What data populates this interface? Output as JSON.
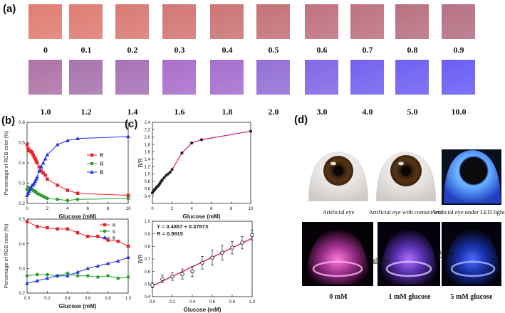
{
  "panels": {
    "a": "(a)",
    "b": "(b)",
    "c": "(c)",
    "d": "(d)"
  },
  "swatches": {
    "row1": [
      {
        "label": "0",
        "color": "#e07e72"
      },
      {
        "label": "0.1",
        "color": "#de7d73"
      },
      {
        "label": "0.2",
        "color": "#d97a74"
      },
      {
        "label": "0.3",
        "color": "#d27775"
      },
      {
        "label": "0.4",
        "color": "#cb7576"
      },
      {
        "label": "0.5",
        "color": "#c47279"
      },
      {
        "label": "0.6",
        "color": "#c0727f"
      },
      {
        "label": "0.7",
        "color": "#bd7280"
      },
      {
        "label": "0.8",
        "color": "#b97181"
      },
      {
        "label": "0.9",
        "color": "#b57183"
      }
    ],
    "row2": [
      {
        "label": "1.0",
        "color": "#ae73a6"
      },
      {
        "label": "1.2",
        "color": "#a874ae"
      },
      {
        "label": "1.4",
        "color": "#a872b6"
      },
      {
        "label": "1.6",
        "color": "#aa6fcb"
      },
      {
        "label": "1.8",
        "color": "#a66fce"
      },
      {
        "label": "2.0",
        "color": "#9470d6"
      },
      {
        "label": "3.0",
        "color": "#8268e6"
      },
      {
        "label": "4.0",
        "color": "#7462ee"
      },
      {
        "label": "5.0",
        "color": "#7061f2"
      },
      {
        "label": "10.0",
        "color": "#6a5ef5"
      }
    ]
  },
  "chart_data": [
    {
      "id": "b_top",
      "type": "line",
      "xlabel": "Glucose (mM)",
      "ylabel": "Percentage of RGB color (%)",
      "xlim": [
        0,
        10
      ],
      "ylim": [
        0.2,
        0.6
      ],
      "xticks": [
        "0",
        "2",
        "4",
        "6",
        "8",
        "10"
      ],
      "yticks": [
        "0.2",
        "0.3",
        "0.4",
        "0.5",
        "0.6"
      ],
      "legend": [
        "R",
        "G",
        "B"
      ],
      "colors": [
        "#e8242b",
        "#2e9e2e",
        "#2233dd"
      ],
      "series": [
        {
          "name": "R",
          "x": [
            0,
            0.1,
            0.2,
            0.3,
            0.4,
            0.5,
            0.6,
            0.7,
            0.8,
            0.9,
            1.0,
            1.2,
            1.4,
            1.6,
            1.8,
            2,
            3,
            4,
            5,
            10
          ],
          "y": [
            0.49,
            0.47,
            0.46,
            0.46,
            0.455,
            0.45,
            0.44,
            0.43,
            0.42,
            0.41,
            0.4,
            0.38,
            0.36,
            0.35,
            0.34,
            0.32,
            0.29,
            0.265,
            0.25,
            0.24
          ]
        },
        {
          "name": "G",
          "x": [
            0,
            0.1,
            0.2,
            0.3,
            0.4,
            0.5,
            0.6,
            0.7,
            0.8,
            0.9,
            1.0,
            1.2,
            1.4,
            1.6,
            1.8,
            2,
            3,
            4,
            5,
            10
          ],
          "y": [
            0.27,
            0.28,
            0.275,
            0.275,
            0.27,
            0.27,
            0.265,
            0.26,
            0.26,
            0.255,
            0.25,
            0.245,
            0.24,
            0.235,
            0.23,
            0.225,
            0.22,
            0.215,
            0.22,
            0.225
          ]
        },
        {
          "name": "B",
          "x": [
            0,
            0.1,
            0.2,
            0.3,
            0.4,
            0.5,
            0.6,
            0.7,
            0.8,
            0.9,
            1.0,
            1.2,
            1.4,
            1.6,
            1.8,
            2,
            3,
            4,
            5,
            10
          ],
          "y": [
            0.24,
            0.25,
            0.26,
            0.27,
            0.28,
            0.29,
            0.29,
            0.3,
            0.31,
            0.32,
            0.33,
            0.36,
            0.38,
            0.4,
            0.42,
            0.44,
            0.49,
            0.51,
            0.52,
            0.53
          ]
        }
      ]
    },
    {
      "id": "c_top",
      "type": "line",
      "xlabel": "Glucose (mM)",
      "ylabel": "B/R",
      "xlim": [
        0,
        10
      ],
      "ylim": [
        0.2,
        2.4
      ],
      "xticks": [
        "0",
        "2",
        "4",
        "6",
        "8",
        "10"
      ],
      "yticks": [
        "0.4",
        "0.6",
        "0.8",
        "1.0",
        "1.2",
        "1.4",
        "1.6",
        "1.8",
        "2.0",
        "2.2",
        "2.4"
      ],
      "color": "#d6157f",
      "x": [
        0,
        0.1,
        0.2,
        0.3,
        0.4,
        0.5,
        0.6,
        0.7,
        0.8,
        0.9,
        1.0,
        1.2,
        1.4,
        1.6,
        1.8,
        2,
        3,
        4,
        5,
        10
      ],
      "y": [
        0.49,
        0.53,
        0.56,
        0.6,
        0.63,
        0.66,
        0.68,
        0.72,
        0.76,
        0.8,
        0.84,
        0.9,
        0.96,
        1.0,
        1.05,
        1.12,
        1.57,
        1.84,
        1.93,
        2.16
      ]
    },
    {
      "id": "b_bottom",
      "type": "line",
      "xlabel": "Glucose (mM)",
      "ylabel": "Percentage of RGB color (%)",
      "xlim": [
        0,
        1.0
      ],
      "ylim": [
        0.2,
        0.5
      ],
      "xticks": [
        "0.0",
        "0.2",
        "0.4",
        "0.6",
        "0.8",
        "1.0"
      ],
      "yticks": [
        "0.2",
        "0.3",
        "0.4",
        "0.5"
      ],
      "legend": [
        "R",
        "G",
        "B"
      ],
      "colors": [
        "#e8242b",
        "#2e9e2e",
        "#2233dd"
      ],
      "series": [
        {
          "name": "R",
          "x": [
            0,
            0.1,
            0.2,
            0.3,
            0.4,
            0.5,
            0.6,
            0.7,
            0.8,
            0.9,
            1.0
          ],
          "y": [
            0.49,
            0.47,
            0.465,
            0.46,
            0.46,
            0.445,
            0.43,
            0.43,
            0.415,
            0.41,
            0.39
          ]
        },
        {
          "name": "G",
          "x": [
            0,
            0.1,
            0.2,
            0.3,
            0.4,
            0.5,
            0.6,
            0.7,
            0.8,
            0.9,
            1.0
          ],
          "y": [
            0.27,
            0.275,
            0.275,
            0.27,
            0.28,
            0.27,
            0.27,
            0.265,
            0.27,
            0.26,
            0.265
          ]
        },
        {
          "name": "B",
          "x": [
            0,
            0.1,
            0.2,
            0.3,
            0.4,
            0.5,
            0.6,
            0.7,
            0.8,
            0.9,
            1.0
          ],
          "y": [
            0.24,
            0.25,
            0.26,
            0.27,
            0.27,
            0.285,
            0.3,
            0.31,
            0.32,
            0.33,
            0.345
          ]
        }
      ]
    },
    {
      "id": "c_bottom",
      "type": "scatter",
      "xlabel": "Glucose (mM)",
      "ylabel": "B/R",
      "xlim": [
        0,
        1.0
      ],
      "ylim": [
        0.4,
        1.0
      ],
      "xticks": [
        "0.0",
        "0.2",
        "0.4",
        "0.6",
        "0.8",
        "1.0"
      ],
      "yticks": [
        "0.4",
        "0.5",
        "0.6",
        "0.7",
        "0.8",
        "0.9",
        "1.0"
      ],
      "annotation_lines": [
        "Y = 0.4857 + 0.3787X",
        "R = 0.9915"
      ],
      "fit": {
        "intercept": 0.4857,
        "slope": 0.3787
      },
      "color": "#d6157f",
      "x": [
        0,
        0.1,
        0.2,
        0.3,
        0.4,
        0.5,
        0.6,
        0.7,
        0.8,
        0.9,
        1.0
      ],
      "y": [
        0.49,
        0.54,
        0.56,
        0.58,
        0.6,
        0.67,
        0.71,
        0.75,
        0.79,
        0.83,
        0.89
      ],
      "err": [
        0.02,
        0.03,
        0.03,
        0.04,
        0.04,
        0.05,
        0.06,
        0.06,
        0.05,
        0.05,
        0.04
      ]
    }
  ],
  "eyes": {
    "top": [
      {
        "caption": "Artificial eye"
      },
      {
        "caption": "Artificial eye with contact lens"
      },
      {
        "caption": "Artificial eye under LED light"
      }
    ],
    "bottom": [
      {
        "caption": "0 mM"
      },
      {
        "caption": "1 mM glucose"
      },
      {
        "caption": "5 mM glucose"
      }
    ],
    "arrows": [
      "glucose",
      "glucose"
    ]
  }
}
